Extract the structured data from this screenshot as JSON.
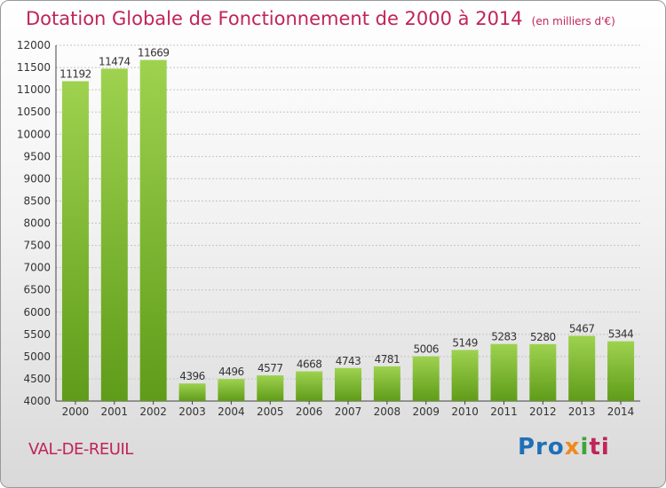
{
  "header": {
    "title": "Dotation Globale de Fonctionnement de 2000 à 2014",
    "subtitle": "(en milliers d'€)"
  },
  "footer": {
    "place": "VAL-DE-REUIL",
    "logo": [
      "Pro",
      "x",
      "i",
      "ti"
    ]
  },
  "colors": {
    "bar_top": "#9ed24f",
    "bar_bottom": "#5f9c19",
    "title": "#c0245a"
  },
  "chart_data": {
    "type": "bar",
    "title": "Dotation Globale de Fonctionnement de 2000 à 2014",
    "subtitle": "(en milliers d'€)",
    "categories": [
      "2000",
      "2001",
      "2002",
      "2003",
      "2004",
      "2005",
      "2006",
      "2007",
      "2008",
      "2009",
      "2010",
      "2011",
      "2012",
      "2013",
      "2014"
    ],
    "values": [
      11192,
      11474,
      11669,
      4396,
      4496,
      4577,
      4668,
      4743,
      4781,
      5006,
      5149,
      5283,
      5280,
      5467,
      5344
    ],
    "ylim": [
      4000,
      12000
    ],
    "yticks": [
      4000,
      4500,
      5000,
      5500,
      6000,
      6500,
      7000,
      7500,
      8000,
      8500,
      9000,
      9500,
      10000,
      10500,
      11000,
      11500,
      12000
    ],
    "grid": true,
    "legend": "none"
  }
}
